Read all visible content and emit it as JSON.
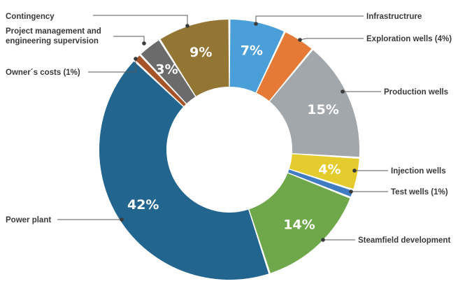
{
  "chart_data": {
    "type": "pie",
    "variant": "donut",
    "title": "",
    "slices": [
      {
        "name": "Infrastructrure",
        "value": 7,
        "color": "#4a9fd9",
        "pct_label": "7%",
        "ext_label": "Infrastructrure"
      },
      {
        "name": "Exploration wells",
        "value": 4,
        "color": "#e47a36",
        "pct_label": "",
        "ext_label": "Exploration wells (4%)"
      },
      {
        "name": "Production wells",
        "value": 15,
        "color": "#a2a7ab",
        "pct_label": "15%",
        "ext_label": "Production wells"
      },
      {
        "name": "Injection wells",
        "value": 4,
        "color": "#e4cb2e",
        "pct_label": "4%",
        "ext_label": "Injection wells"
      },
      {
        "name": "Test wells",
        "value": 1,
        "color": "#3f7cc2",
        "pct_label": "",
        "ext_label": "Test wells (1%)"
      },
      {
        "name": "Steamfield development",
        "value": 14,
        "color": "#6fa84a",
        "pct_label": "14%",
        "ext_label": "Steamfield development"
      },
      {
        "name": "Power plant",
        "value": 42,
        "color": "#22658f",
        "pct_label": "42%",
        "ext_label": "Power plant"
      },
      {
        "name": "Owner´s costs",
        "value": 1,
        "color": "#a7532a",
        "pct_label": "",
        "ext_label": "Owner´s costs (1%)"
      },
      {
        "name": "Project management and engineering supervision",
        "value": 3,
        "color": "#6b6b6b",
        "pct_label": "3%",
        "ext_label": "Project management and engineering supervision"
      },
      {
        "name": "Contingency",
        "value": 9,
        "color": "#937634",
        "pct_label": "9%",
        "ext_label": "Contingency"
      }
    ]
  }
}
